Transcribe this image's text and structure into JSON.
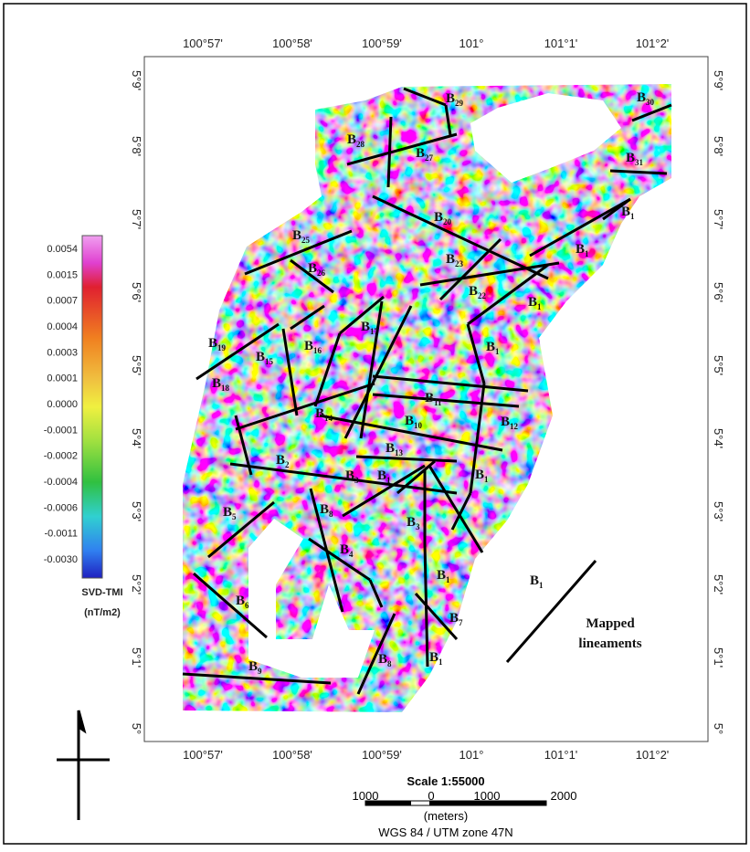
{
  "map": {
    "top_axis": [
      "100°57'",
      "100°58'",
      "100°59'",
      "101°",
      "101°1'",
      "101°2'"
    ],
    "bottom_axis": [
      "100°57'",
      "100°58'",
      "100°59'",
      "101°",
      "101°1'",
      "101°2'"
    ],
    "left_axis": [
      "5°9'",
      "5°8'",
      "5°7'",
      "5°6'",
      "5°5'",
      "5°4'",
      "5°3'",
      "5°2'",
      "5°1'",
      "5°"
    ],
    "right_axis": [
      "5°9'",
      "5°8'",
      "5°7'",
      "5°6'",
      "5°5'",
      "5°4'",
      "5°3'",
      "5°2'",
      "5°1'",
      "5°"
    ],
    "colorbar": {
      "labels": [
        "0.0054",
        "0.0015",
        "0.0007",
        "0.0004",
        "0.0003",
        "0.0001",
        "0.0000",
        "-0.0001",
        "-0.0002",
        "-0.0004",
        "-0.0006",
        "-0.0011",
        "-0.0030"
      ],
      "title": "SVD-TMI",
      "unit": "(nT/m2)"
    },
    "lineaments": [
      {
        "b": "B",
        "s": "29"
      },
      {
        "b": "B",
        "s": "30"
      },
      {
        "b": "B",
        "s": "28"
      },
      {
        "b": "B",
        "s": "27"
      },
      {
        "b": "B",
        "s": "31"
      },
      {
        "b": "B",
        "s": "1"
      },
      {
        "b": "B",
        "s": "20"
      },
      {
        "b": "B",
        "s": "25"
      },
      {
        "b": "B",
        "s": "1"
      },
      {
        "b": "B",
        "s": "23"
      },
      {
        "b": "B",
        "s": "26"
      },
      {
        "b": "B",
        "s": "22"
      },
      {
        "b": "B",
        "s": "1"
      },
      {
        "b": "B",
        "s": "17"
      },
      {
        "b": "B",
        "s": "19"
      },
      {
        "b": "B",
        "s": "16"
      },
      {
        "b": "B",
        "s": "15"
      },
      {
        "b": "B",
        "s": "1"
      },
      {
        "b": "B",
        "s": "18"
      },
      {
        "b": "B",
        "s": "11"
      },
      {
        "b": "B",
        "s": "14"
      },
      {
        "b": "B",
        "s": "10"
      },
      {
        "b": "B",
        "s": "12"
      },
      {
        "b": "B",
        "s": "13"
      },
      {
        "b": "B",
        "s": "1"
      },
      {
        "b": "B",
        "s": "2"
      },
      {
        "b": "B",
        "s": "3"
      },
      {
        "b": "B",
        "s": "1"
      },
      {
        "b": "B",
        "s": "5"
      },
      {
        "b": "B",
        "s": "8"
      },
      {
        "b": "B",
        "s": "3"
      },
      {
        "b": "B",
        "s": "4"
      },
      {
        "b": "B",
        "s": "1"
      },
      {
        "b": "B",
        "s": "6"
      },
      {
        "b": "B",
        "s": "7"
      },
      {
        "b": "B",
        "s": "8"
      },
      {
        "b": "B",
        "s": "1"
      },
      {
        "b": "B",
        "s": "9"
      }
    ],
    "legend": {
      "b": "B",
      "s": "1",
      "text": [
        "Mapped",
        "lineaments"
      ]
    },
    "scale": {
      "title": "Scale 1:55000",
      "ticks": [
        "1000",
        "0",
        "1000",
        "2000"
      ],
      "unit": "(meters)",
      "projection": "WGS 84 / UTM zone 47N"
    }
  }
}
